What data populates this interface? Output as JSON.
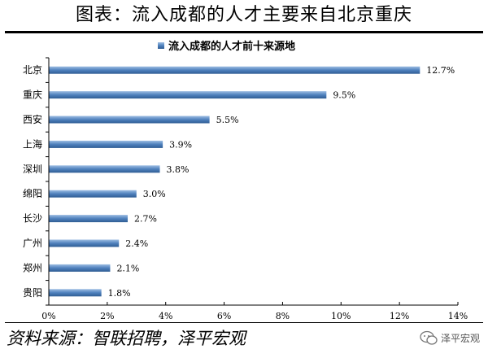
{
  "figure_title": "图表：流入成都的人才主要来自北京重庆",
  "source": "资料来源：智联招聘，泽平宏观",
  "watermark": "泽平宏观",
  "chart_data": {
    "type": "bar",
    "orientation": "horizontal",
    "legend": "流入成都的人才前十来源地",
    "legend_placement": "top-center",
    "categories": [
      "北京",
      "重庆",
      "西安",
      "上海",
      "深圳",
      "绵阳",
      "长沙",
      "广州",
      "郑州",
      "贵阳"
    ],
    "values": [
      12.7,
      9.5,
      5.5,
      3.9,
      3.8,
      3.0,
      2.7,
      2.4,
      2.1,
      1.8
    ],
    "value_labels": [
      "12.7%",
      "9.5%",
      "5.5%",
      "3.9%",
      "3.8%",
      "3.0%",
      "2.7%",
      "2.4%",
      "2.1%",
      "1.8%"
    ],
    "xlim": [
      0,
      14
    ],
    "xticks": [
      "0%",
      "2%",
      "4%",
      "6%",
      "8%",
      "10%",
      "12%",
      "14%"
    ],
    "grid": false,
    "bar_color": "#4f81bd"
  }
}
